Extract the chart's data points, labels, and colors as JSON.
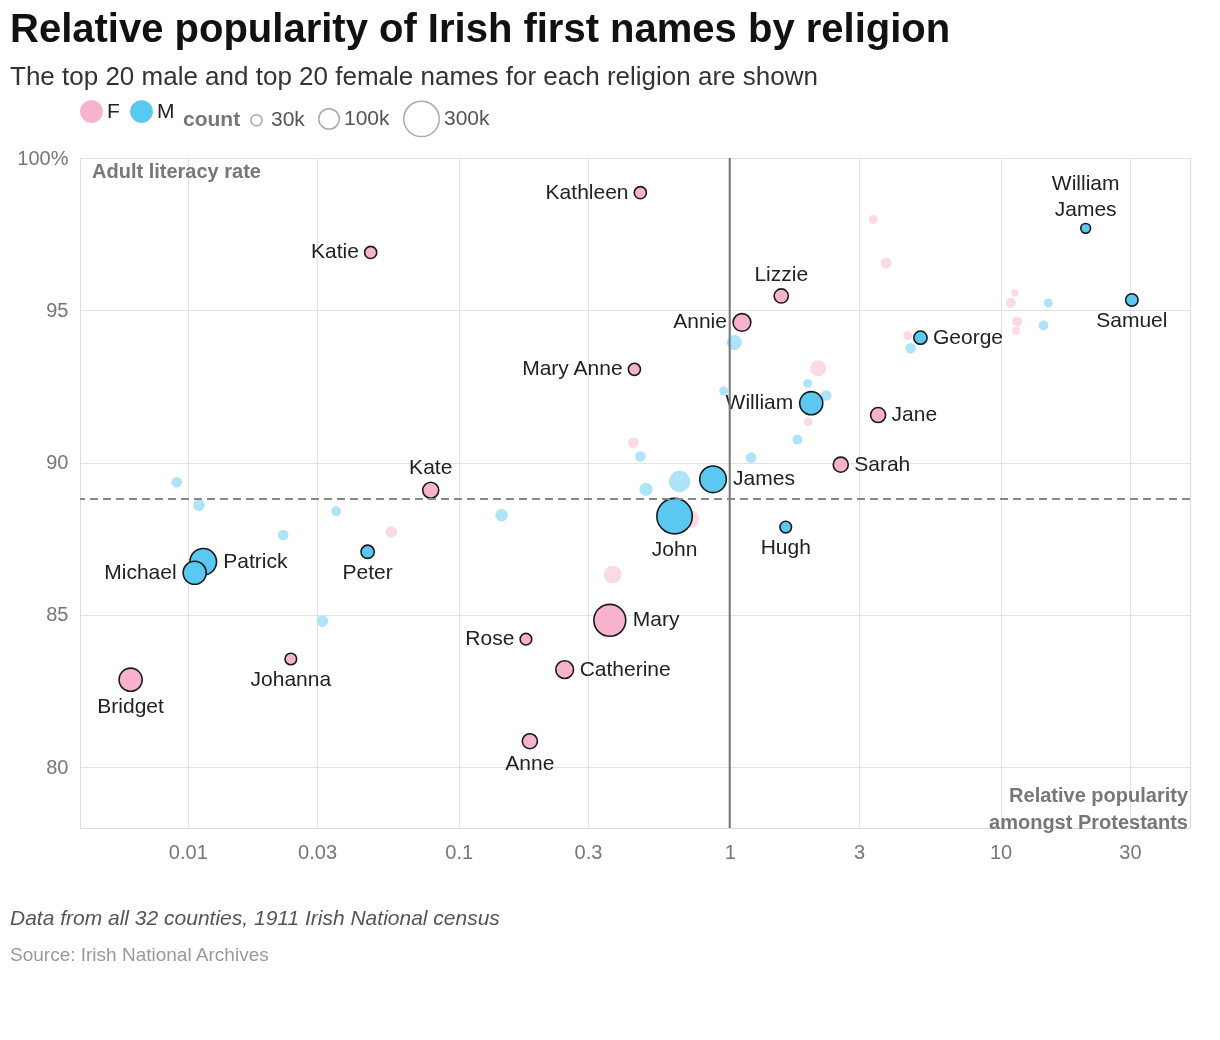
{
  "chart_data": {
    "type": "bubble",
    "title": "Relative popularity of Irish first names by religion",
    "subtitle": "The top 20 male and top 20 female names for each religion are shown",
    "xlabel": "Relative popularity amongst Protestants",
    "ylabel": "Adult literacy rate",
    "legend_title": "count",
    "size_legend": [
      {
        "value": 30,
        "label": "30k"
      },
      {
        "value": 100,
        "label": "100k"
      },
      {
        "value": 300,
        "label": "300k"
      }
    ],
    "log": "x",
    "xlim": [
      0.004,
      50
    ],
    "xticks": [
      0.01,
      0.03,
      0.1,
      0.3,
      1,
      3,
      10,
      30
    ],
    "ylim": [
      78,
      100
    ],
    "yticks": [
      80,
      85,
      90,
      95,
      {
        "value": 100,
        "label": "100%"
      }
    ],
    "grid": true,
    "legend": "top",
    "marker": "circle",
    "ref_lines": [
      {
        "axis": "x",
        "value": 1,
        "color": "#777777",
        "line_style": "solid"
      },
      {
        "axis": "y",
        "value": 88.8,
        "color": "#888888",
        "line_style": "dashed"
      }
    ],
    "annotations": [
      "Data from all 32 counties, 1911 Irish National census",
      "Source: Irish National Archives"
    ],
    "series": [
      {
        "type": "bubble",
        "color": "#fbd9e5",
        "x": [
          3.39,
          3.78,
          11.3,
          10.9,
          11.5,
          11.4,
          4.54,
          2.12,
          1.95,
          0.441,
          0.716,
          0.37,
          0.0564
        ],
        "values": [
          97.98,
          96.55,
          95.57,
          95.24,
          94.63,
          94.33,
          94.17,
          93.09,
          91.34,
          90.65,
          88.14,
          86.32,
          87.72
        ],
        "sizes": [
          19,
          27,
          12,
          23,
          23,
          15,
          19,
          61,
          19,
          27,
          75,
          75,
          32
        ]
      },
      {
        "type": "bubble",
        "color": "#aee3f8",
        "x": [
          15.0,
          14.4,
          4.65,
          1.04,
          0.95,
          1.94,
          2.27,
          1.78,
          1.2,
          0.468,
          0.491,
          0.653,
          0.144,
          0.0353,
          0.0225,
          0.011,
          0.0091,
          0.0314
        ],
        "values": [
          95.24,
          94.5,
          93.75,
          93.94,
          92.35,
          92.6,
          92.2,
          90.75,
          90.16,
          90.2,
          89.12,
          89.38,
          88.27,
          88.4,
          87.62,
          88.6,
          89.35,
          84.79
        ],
        "sizes": [
          19,
          23,
          27,
          54,
          19,
          19,
          27,
          23,
          27,
          27,
          42,
          108,
          37,
          23,
          27,
          32,
          27,
          32
        ]
      },
      {
        "type": "bubble",
        "name": "F",
        "color": "#f7b3cd",
        "x": [
          0.468,
          0.0473,
          1.55,
          1.11,
          0.445,
          3.53,
          2.57,
          0.0788,
          0.361,
          0.177,
          0.246,
          0.183,
          0.024,
          0.00615
        ],
        "values": [
          98.86,
          96.9,
          95.47,
          94.6,
          93.06,
          91.56,
          89.93,
          89.09,
          84.82,
          84.2,
          83.2,
          80.85,
          83.55,
          82.87
        ],
        "sizes": [
          35,
          35,
          48,
          75,
          35,
          54,
          54,
          61,
          243,
          32,
          75,
          54,
          32,
          127
        ],
        "value_labels": [
          "Kathleen",
          "Katie",
          "Lizzie",
          "Annie",
          "Mary Anne",
          "Jane",
          "Sarah",
          "Kate",
          "Mary",
          "Rose",
          "Catherine",
          "Anne",
          "Johanna",
          "Bridget"
        ]
      },
      {
        "type": "bubble",
        "name": "M",
        "color": "#5bc8f2",
        "x": [
          20.6,
          30.5,
          5.06,
          2.0,
          0.868,
          0.626,
          1.61,
          0.0461,
          0.0114,
          0.0106
        ],
        "values": [
          97.69,
          95.34,
          94.1,
          91.95,
          89.45,
          88.24,
          87.88,
          87.07,
          86.74,
          86.38
        ],
        "sizes": [
          23,
          37,
          42,
          127,
          169,
          300,
          32,
          42,
          169,
          127
        ],
        "value_labels": [
          "William James",
          "Samuel",
          "George",
          "William",
          "James",
          "John",
          "Hugh",
          "Peter",
          "Patrick",
          "Michael"
        ]
      }
    ]
  }
}
